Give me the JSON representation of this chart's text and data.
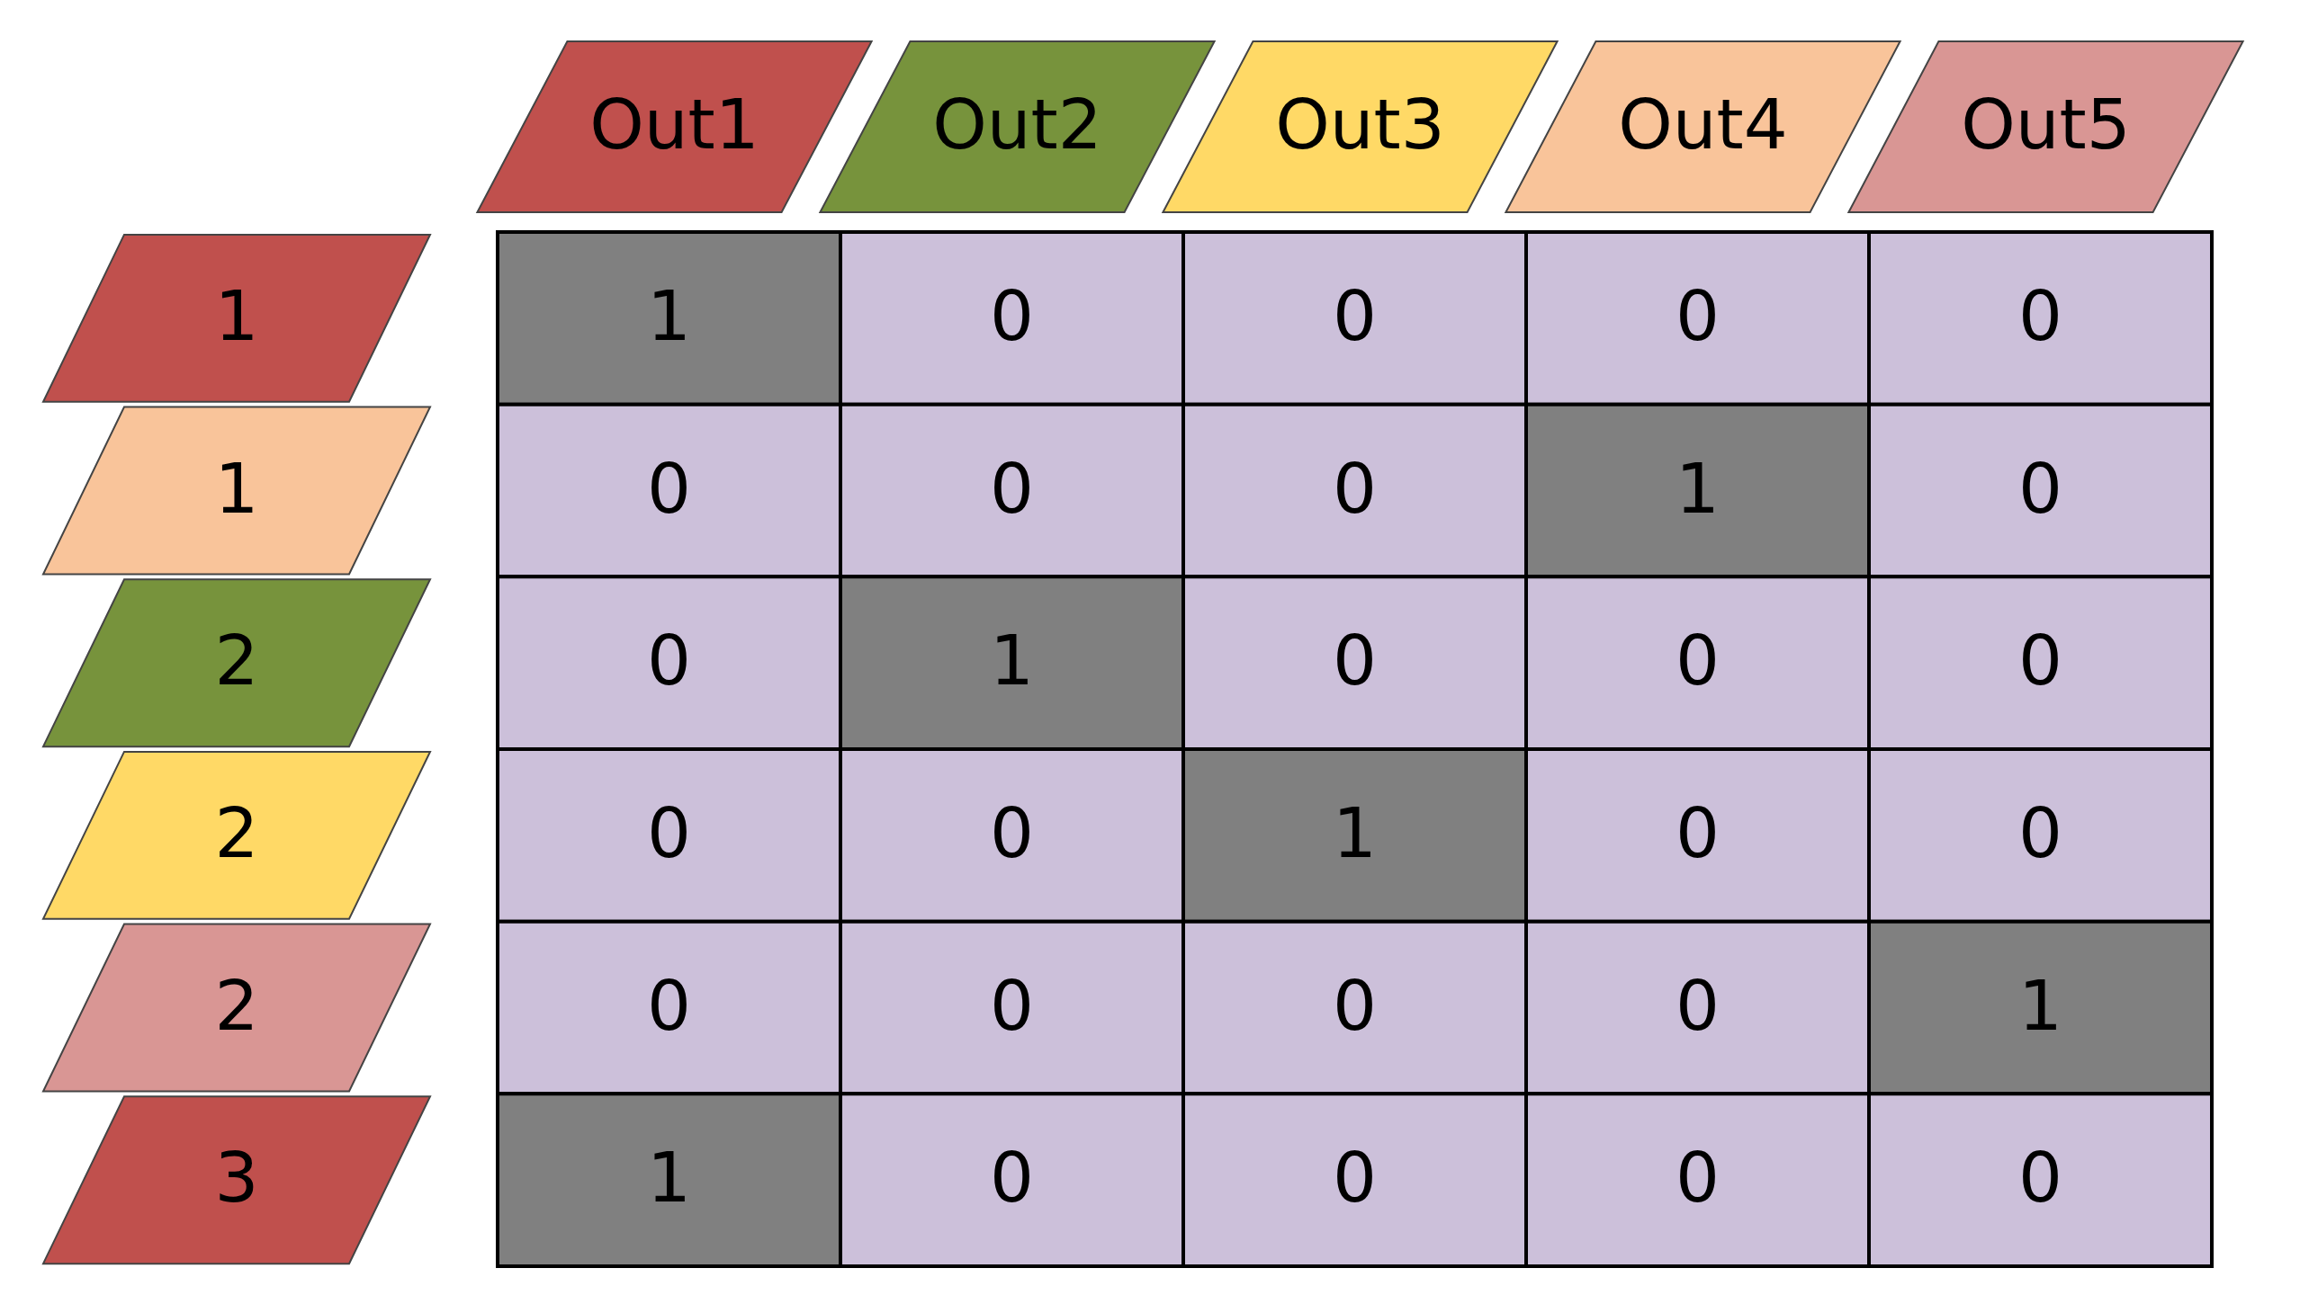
{
  "chart_data": {
    "type": "heatmap",
    "categories": [
      "Out1",
      "Out2",
      "Out3",
      "Out4",
      "Out5"
    ],
    "y_categories": [
      "1",
      "1",
      "2",
      "2",
      "2",
      "3"
    ],
    "cells": [
      [
        1,
        0,
        0,
        0,
        0
      ],
      [
        0,
        0,
        0,
        1,
        0
      ],
      [
        0,
        1,
        0,
        0,
        0
      ],
      [
        0,
        0,
        1,
        0,
        0
      ],
      [
        0,
        0,
        0,
        0,
        1
      ],
      [
        1,
        0,
        0,
        0,
        0
      ]
    ],
    "data_labels": true
  }
}
